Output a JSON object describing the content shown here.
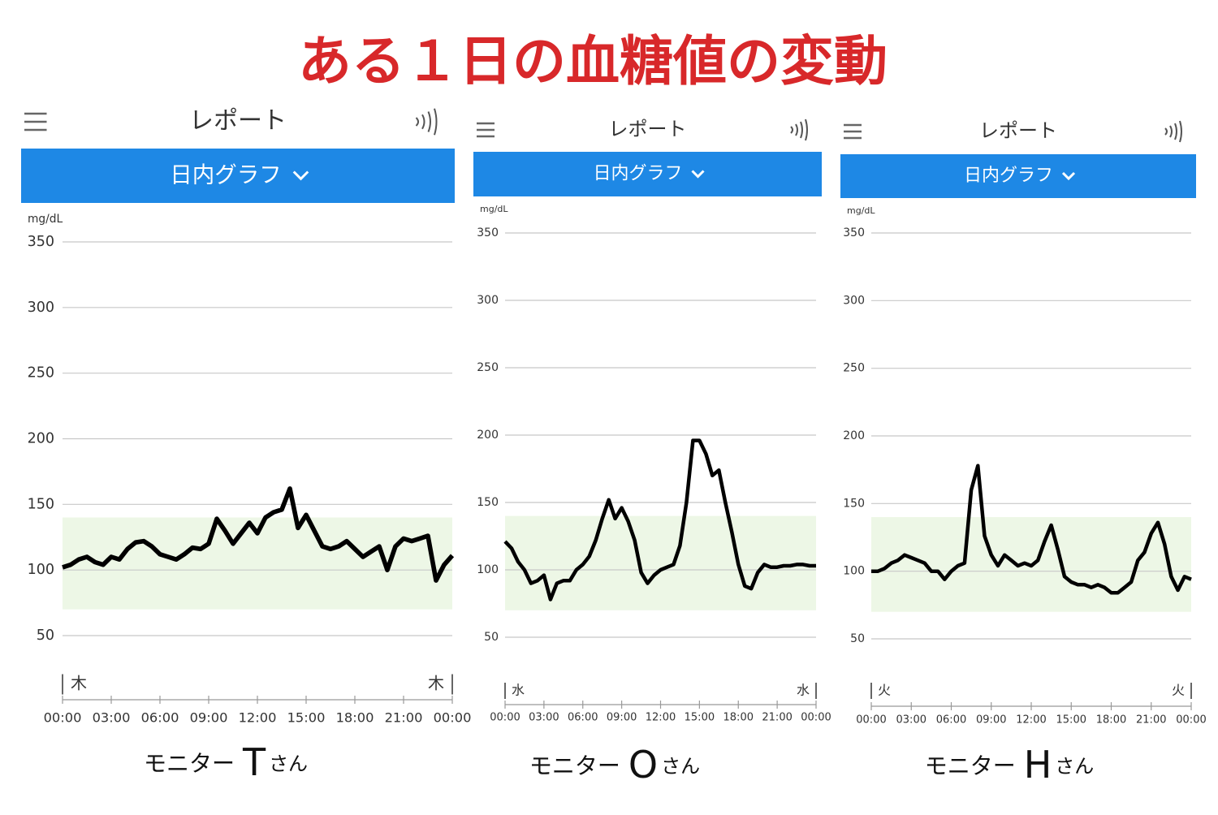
{
  "title": "ある１日の血糖値の変動",
  "chart_data": [
    {
      "type": "line",
      "header": "レポート",
      "dropdown": "日内グラフ",
      "y_label": "mg/dL",
      "day_labels": [
        "木",
        "木"
      ],
      "caption": {
        "prefix": "モニター",
        "name": "T",
        "suffix": "さん"
      },
      "target_range": [
        70,
        140
      ],
      "target_color": "#edf7e6",
      "grid": true,
      "xlim": [
        0,
        24
      ],
      "ylim": [
        50,
        350
      ],
      "yticks": [
        50,
        100,
        150,
        200,
        250,
        300,
        350
      ],
      "xticks": [
        {
          "value": 0,
          "label": "00:00"
        },
        {
          "value": 3,
          "label": "03:00"
        },
        {
          "value": 6,
          "label": "06:00"
        },
        {
          "value": 9,
          "label": "09:00"
        },
        {
          "value": 12,
          "label": "12:00"
        },
        {
          "value": 15,
          "label": "15:00"
        },
        {
          "value": 18,
          "label": "18:00"
        },
        {
          "value": 21,
          "label": "21:00"
        },
        {
          "value": 24,
          "label": "00:00"
        }
      ],
      "x": [
        0,
        0.5,
        1,
        1.5,
        2,
        2.5,
        3,
        3.5,
        4,
        4.5,
        5,
        5.5,
        6,
        6.5,
        7,
        7.5,
        8,
        8.5,
        9,
        9.5,
        10,
        10.5,
        11,
        11.5,
        12,
        12.5,
        13,
        13.5,
        14,
        14.5,
        15,
        15.5,
        16,
        16.5,
        17,
        17.5,
        18,
        18.5,
        19,
        19.5,
        20,
        20.5,
        21,
        21.5,
        22,
        22.5,
        23,
        23.5,
        24
      ],
      "series": [
        {
          "color": "#000000",
          "values": [
            102,
            104,
            108,
            110,
            106,
            104,
            110,
            108,
            116,
            121,
            122,
            118,
            112,
            110,
            108,
            112,
            117,
            116,
            120,
            139,
            130,
            120,
            128,
            136,
            128,
            140,
            144,
            146,
            162,
            132,
            142,
            130,
            118,
            116,
            118,
            122,
            116,
            110,
            114,
            118,
            100,
            118,
            124,
            122,
            124,
            126,
            92,
            104,
            111
          ]
        }
      ]
    },
    {
      "type": "line",
      "header": "レポート",
      "dropdown": "日内グラフ",
      "y_label": "mg/dL",
      "day_labels": [
        "水",
        "水"
      ],
      "caption": {
        "prefix": "モニター",
        "name": "O",
        "suffix": "さん"
      },
      "target_range": [
        70,
        140
      ],
      "target_color": "#edf7e6",
      "grid": true,
      "xlim": [
        0,
        24
      ],
      "ylim": [
        50,
        350
      ],
      "yticks": [
        50,
        100,
        150,
        200,
        250,
        300,
        350
      ],
      "xticks": [
        {
          "value": 0,
          "label": "00:00"
        },
        {
          "value": 3,
          "label": "03:00"
        },
        {
          "value": 6,
          "label": "06:00"
        },
        {
          "value": 9,
          "label": "09:00"
        },
        {
          "value": 12,
          "label": "12:00"
        },
        {
          "value": 15,
          "label": "15:00"
        },
        {
          "value": 18,
          "label": "18:00"
        },
        {
          "value": 21,
          "label": "21:00"
        },
        {
          "value": 24,
          "label": "00:00"
        }
      ],
      "x": [
        0,
        0.5,
        1,
        1.5,
        2,
        2.5,
        3,
        3.5,
        4,
        4.5,
        5,
        5.5,
        6,
        6.5,
        7,
        7.5,
        8,
        8.5,
        9,
        9.5,
        10,
        10.5,
        11,
        11.5,
        12,
        12.5,
        13,
        13.5,
        14,
        14.5,
        15,
        15.5,
        16,
        16.5,
        17,
        17.5,
        18,
        18.5,
        19,
        19.5,
        20,
        20.5,
        21,
        21.5,
        22,
        22.5,
        23,
        23.5,
        24
      ],
      "series": [
        {
          "color": "#000000",
          "values": [
            121,
            116,
            106,
            100,
            90,
            92,
            96,
            78,
            90,
            92,
            92,
            100,
            104,
            110,
            122,
            138,
            152,
            138,
            146,
            136,
            122,
            98,
            90,
            96,
            100,
            102,
            104,
            118,
            150,
            196,
            196,
            186,
            170,
            174,
            150,
            128,
            104,
            88,
            86,
            98,
            104,
            102,
            102,
            103,
            103,
            104,
            104,
            103,
            103
          ]
        }
      ]
    },
    {
      "type": "line",
      "header": "レポート",
      "dropdown": "日内グラフ",
      "y_label": "mg/dL",
      "day_labels": [
        "火",
        "火"
      ],
      "caption": {
        "prefix": "モニター",
        "name": "H",
        "suffix": "さん"
      },
      "target_range": [
        70,
        140
      ],
      "target_color": "#edf7e6",
      "grid": true,
      "xlim": [
        0,
        24
      ],
      "ylim": [
        50,
        350
      ],
      "yticks": [
        50,
        100,
        150,
        200,
        250,
        300,
        350
      ],
      "xticks": [
        {
          "value": 0,
          "label": "00:00"
        },
        {
          "value": 3,
          "label": "03:00"
        },
        {
          "value": 6,
          "label": "06:00"
        },
        {
          "value": 9,
          "label": "09:00"
        },
        {
          "value": 12,
          "label": "12:00"
        },
        {
          "value": 15,
          "label": "15:00"
        },
        {
          "value": 18,
          "label": "18:00"
        },
        {
          "value": 21,
          "label": "21:00"
        },
        {
          "value": 24,
          "label": "00:00"
        }
      ],
      "x": [
        0,
        0.5,
        1,
        1.5,
        2,
        2.5,
        3,
        3.5,
        4,
        4.5,
        5,
        5.5,
        6,
        6.5,
        7,
        7.5,
        8,
        8.5,
        9,
        9.5,
        10,
        10.5,
        11,
        11.5,
        12,
        12.5,
        13,
        13.5,
        14,
        14.5,
        15,
        15.5,
        16,
        16.5,
        17,
        17.5,
        18,
        18.5,
        19,
        19.5,
        20,
        20.5,
        21,
        21.5,
        22,
        22.5,
        23,
        23.5,
        24
      ],
      "series": [
        {
          "color": "#000000",
          "values": [
            100,
            100,
            102,
            106,
            108,
            112,
            110,
            108,
            106,
            100,
            100,
            94,
            100,
            104,
            106,
            160,
            178,
            126,
            112,
            104,
            112,
            108,
            104,
            106,
            104,
            108,
            122,
            134,
            116,
            96,
            92,
            90,
            90,
            88,
            90,
            88,
            84,
            84,
            88,
            92,
            108,
            114,
            128,
            136,
            120,
            96,
            86,
            96,
            94
          ]
        }
      ]
    }
  ]
}
